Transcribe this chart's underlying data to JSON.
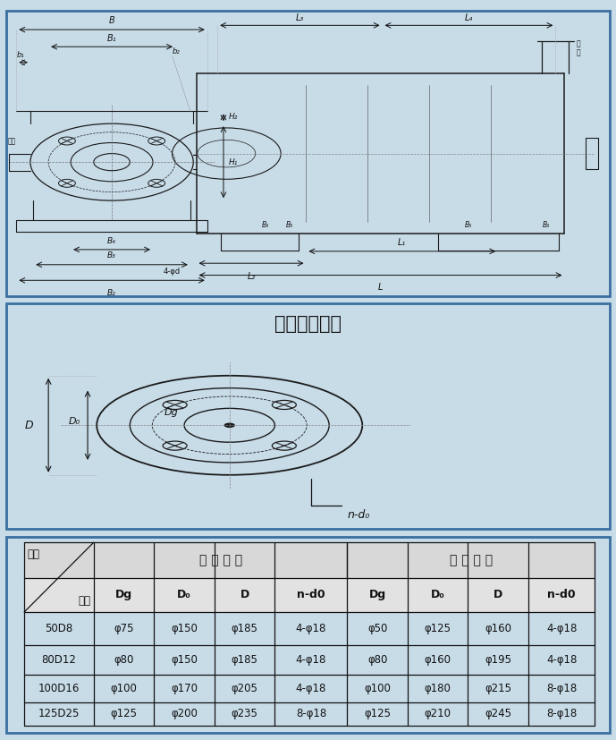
{
  "bg_color": "#c8dce8",
  "panel_bg": "#f0f4f6",
  "border_color": "#3a6fa0",
  "title_section2": "吸入吐出法兰",
  "table_data": [
    [
      "50D8",
      "φ75",
      "φ150",
      "φ185",
      "4-φ18",
      "φ50",
      "φ125",
      "φ160",
      "4-φ18"
    ],
    [
      "80D12",
      "φ80",
      "φ150",
      "φ185",
      "4-φ18",
      "φ80",
      "φ160",
      "φ195",
      "4-φ18"
    ],
    [
      "100D16",
      "φ100",
      "φ170",
      "φ205",
      "4-φ18",
      "φ100",
      "φ180",
      "φ215",
      "8-φ18"
    ],
    [
      "125D25",
      "φ125",
      "φ200",
      "φ235",
      "8-φ18",
      "φ125",
      "φ210",
      "φ245",
      "8-φ18"
    ]
  ],
  "line_color": "#1a1a1a",
  "dim_color": "#111111"
}
